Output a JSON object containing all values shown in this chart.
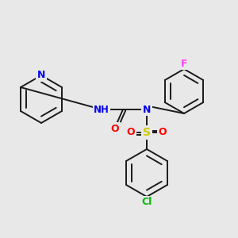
{
  "background_color": "#e8e8e8",
  "bond_color": "#1a1a1a",
  "colors": {
    "N": "#0000ee",
    "O": "#ff0000",
    "S": "#cccc00",
    "F": "#ff44ff",
    "Cl": "#00bb00",
    "H_label": "#888888"
  },
  "lw": 1.4
}
